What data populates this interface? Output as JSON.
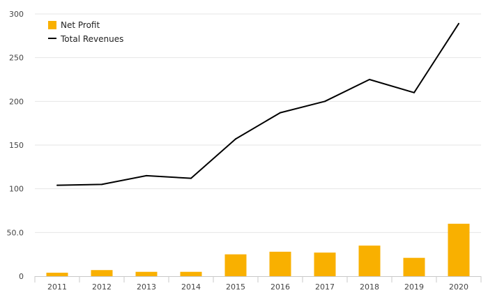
{
  "chart_data": {
    "type": "bar",
    "title": "",
    "xlabel": "",
    "ylabel": "",
    "categories": [
      "2011",
      "2012",
      "2013",
      "2014",
      "2015",
      "2016",
      "2017",
      "2018",
      "2019",
      "2020"
    ],
    "ylim": [
      0,
      300
    ],
    "yticks": [
      0,
      50,
      100,
      150,
      200,
      250,
      300
    ],
    "ytick_labels": [
      "0",
      "50.0",
      "100",
      "150",
      "200",
      "250",
      "300"
    ],
    "grid": true,
    "legend_position": "top-left",
    "series": [
      {
        "name": "Net Profit",
        "type": "bar",
        "color": "#f9b000",
        "values": [
          4,
          7,
          5,
          5,
          25,
          28,
          27,
          35,
          21,
          60
        ]
      },
      {
        "name": "Total Revenues",
        "type": "line",
        "color": "#000000",
        "values": [
          104,
          105,
          115,
          112,
          157,
          187,
          200,
          225,
          210,
          289
        ]
      }
    ]
  }
}
